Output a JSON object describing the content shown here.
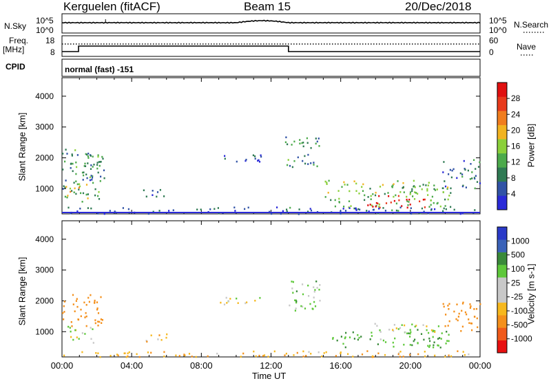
{
  "header": {
    "radar": "Kerguelen (fitACF)",
    "beam": "Beam 15",
    "date": "20/Dec/2018"
  },
  "nsky_panel": {
    "label": "N.Sky",
    "left_ticks": [
      "10^5",
      "10^0"
    ],
    "right_ticks": [
      "10^5",
      "10^0"
    ],
    "right_label": "N.Search"
  },
  "freq_panel": {
    "label_line1": "Freq.",
    "label_line2": "[MHz]",
    "left_ticks": [
      "18",
      "8"
    ],
    "right_ticks": [
      "60",
      "0"
    ],
    "right_label": "Nave",
    "cpid_label": "CPID",
    "cpid_text": "normal (fast) -151"
  },
  "colors": {
    "power_scale": [
      "#2a2ad8",
      "#3153a6",
      "#2f7a53",
      "#4caa4b",
      "#8bd03a",
      "#f2b320",
      "#f07d1e",
      "#e83a1c",
      "#e01010"
    ],
    "velocity_scale": [
      "#e81010",
      "#f05a1a",
      "#f4901c",
      "#f6b81e",
      "#c8c8c8",
      "#c8c8c8",
      "#5ec83a",
      "#3a8a3a",
      "#3a62b8",
      "#2a3ac8"
    ],
    "data_line": "#000000"
  },
  "chart_data": [
    {
      "type": "heatmap",
      "name": "Power",
      "ylabel": "Slant Range [km]",
      "yticks": [
        "4000",
        "3000",
        "2000",
        "1000"
      ],
      "ylim": [
        180,
        4600
      ],
      "colorbar_label": "Power [dB]",
      "colorbar_ticks": [
        "28",
        "24",
        "20",
        "16",
        "12",
        "8",
        "4"
      ],
      "colorbar_range": [
        0,
        32
      ],
      "regions": [
        {
          "x": [
            0.0,
            2.3
          ],
          "range": [
            600,
            2300
          ],
          "level": 10
        },
        {
          "x": [
            0.1,
            1.5
          ],
          "range": [
            700,
            1200
          ],
          "level": 18
        },
        {
          "x": [
            1.2,
            2.4
          ],
          "range": [
            1300,
            2200
          ],
          "level": 8
        },
        {
          "x": [
            4.5,
            6.0
          ],
          "range": [
            700,
            1000
          ],
          "level": 6
        },
        {
          "x": [
            9.0,
            11.5
          ],
          "range": [
            1900,
            2200
          ],
          "level": 5
        },
        {
          "x": [
            12.8,
            14.8
          ],
          "range": [
            1700,
            2700
          ],
          "level": 10
        },
        {
          "x": [
            15.0,
            22.3
          ],
          "range": [
            400,
            1300
          ],
          "level": 14
        },
        {
          "x": [
            17.5,
            21.0
          ],
          "range": [
            400,
            800
          ],
          "level": 30
        },
        {
          "x": [
            21.8,
            24.0
          ],
          "range": [
            1000,
            2000
          ],
          "level": 8
        },
        {
          "x": [
            0.0,
            24.0
          ],
          "range": [
            200,
            420
          ],
          "level": 6
        }
      ]
    },
    {
      "type": "heatmap",
      "name": "Velocity",
      "ylabel": "Slant Range [km]",
      "yticks": [
        "4000",
        "3000",
        "2000",
        "1000"
      ],
      "ylim": [
        180,
        4600
      ],
      "colorbar_label": "Velocity [m s-1]",
      "colorbar_ticks": [
        "1000",
        "500",
        "100",
        "25",
        "-25",
        "-100",
        "-500",
        "-1000"
      ],
      "regions": [
        {
          "x": [
            0.0,
            2.3
          ],
          "range": [
            1200,
            2300
          ],
          "velocity": -300
        },
        {
          "x": [
            0.3,
            1.8
          ],
          "range": [
            600,
            1200
          ],
          "velocity": 0
        },
        {
          "x": [
            4.5,
            6.0
          ],
          "range": [
            700,
            1000
          ],
          "velocity": -50
        },
        {
          "x": [
            9.0,
            11.5
          ],
          "range": [
            1900,
            2200
          ],
          "velocity": 0
        },
        {
          "x": [
            12.8,
            14.8
          ],
          "range": [
            1700,
            2700
          ],
          "velocity": 50
        },
        {
          "x": [
            15.5,
            22.3
          ],
          "range": [
            500,
            1100
          ],
          "velocity": 80
        },
        {
          "x": [
            17.5,
            22.0
          ],
          "range": [
            1000,
            1300
          ],
          "velocity": 0
        },
        {
          "x": [
            21.8,
            24.0
          ],
          "range": [
            1000,
            2000
          ],
          "velocity": -200
        },
        {
          "x": [
            0.0,
            24.0
          ],
          "range": [
            200,
            400
          ],
          "velocity": -80
        }
      ]
    }
  ],
  "time_axis": {
    "ticks": [
      "00:00",
      "04:00",
      "08:00",
      "12:00",
      "16:00",
      "20:00",
      "00:00"
    ],
    "label": "Time UT"
  }
}
